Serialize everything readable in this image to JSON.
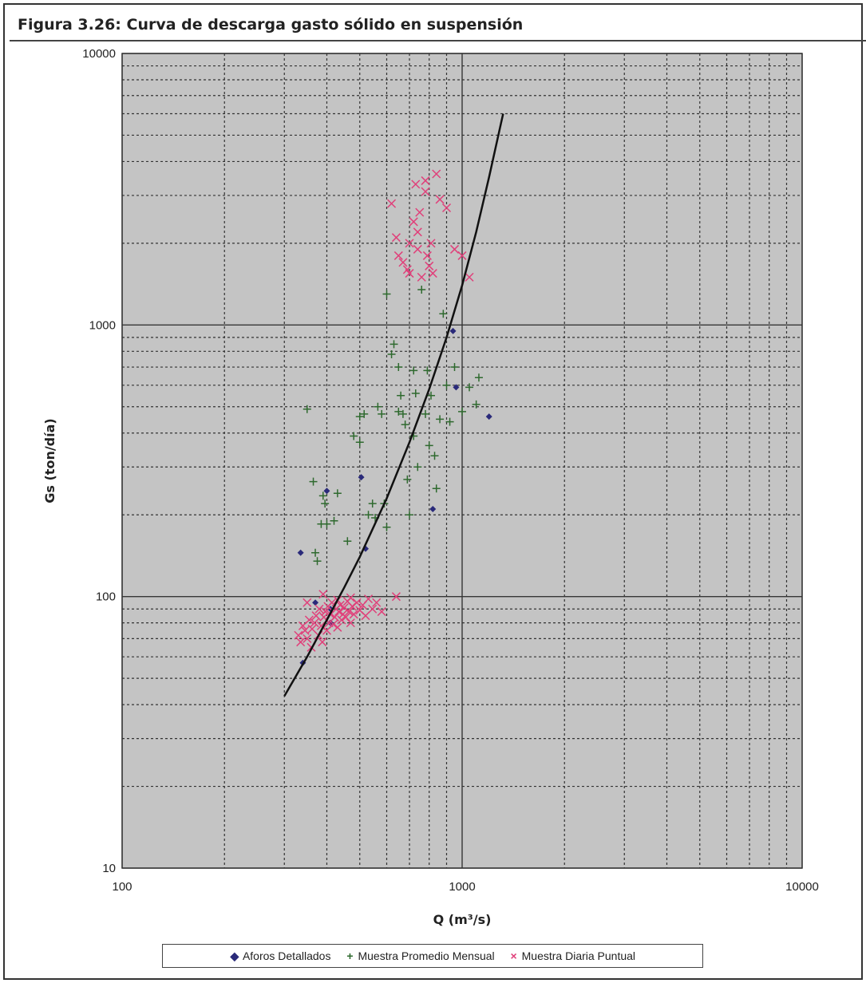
{
  "figure_title": "Figura 3.26:  Curva de descarga gasto sólido en suspensión",
  "chart_data": {
    "type": "scatter",
    "xlabel": "Q (m³/s)",
    "ylabel": "Gs (ton/día)",
    "x_scale": "log",
    "y_scale": "log",
    "xlim": [
      100,
      10000
    ],
    "ylim": [
      10,
      10000
    ],
    "x_ticks": [
      "100",
      "1000",
      "10000"
    ],
    "y_ticks": [
      "10",
      "100",
      "1000",
      "10000"
    ],
    "grid": true,
    "legend_position": "bottom",
    "colors": {
      "plot_bg": "#c4c4c4",
      "aforos": "#2a2a7a",
      "mensual": "#2f6a2f",
      "diaria": "#e0407a",
      "curve": "#111111"
    },
    "series": [
      {
        "name": "Aforos Detallados",
        "marker": "diamond",
        "points": [
          [
            335,
            145
          ],
          [
            340,
            57
          ],
          [
            400,
            245
          ],
          [
            410,
            80
          ],
          [
            505,
            275
          ],
          [
            520,
            150
          ],
          [
            940,
            950
          ],
          [
            960,
            590
          ],
          [
            1200,
            460
          ],
          [
            820,
            210
          ],
          [
            410,
            90
          ],
          [
            370,
            95
          ]
        ]
      },
      {
        "name": "Muestra Promedio Mensual",
        "marker": "plus",
        "points": [
          [
            350,
            490
          ],
          [
            365,
            265
          ],
          [
            370,
            145
          ],
          [
            375,
            135
          ],
          [
            385,
            185
          ],
          [
            390,
            235
          ],
          [
            395,
            220
          ],
          [
            400,
            185
          ],
          [
            420,
            190
          ],
          [
            430,
            240
          ],
          [
            460,
            160
          ],
          [
            480,
            390
          ],
          [
            500,
            370
          ],
          [
            500,
            460
          ],
          [
            515,
            470
          ],
          [
            530,
            200
          ],
          [
            545,
            220
          ],
          [
            555,
            195
          ],
          [
            565,
            500
          ],
          [
            580,
            470
          ],
          [
            590,
            220
          ],
          [
            600,
            180
          ],
          [
            620,
            780
          ],
          [
            630,
            850
          ],
          [
            650,
            700
          ],
          [
            650,
            480
          ],
          [
            660,
            550
          ],
          [
            670,
            470
          ],
          [
            680,
            430
          ],
          [
            690,
            270
          ],
          [
            700,
            200
          ],
          [
            720,
            390
          ],
          [
            720,
            680
          ],
          [
            730,
            560
          ],
          [
            740,
            300
          ],
          [
            760,
            1350
          ],
          [
            780,
            470
          ],
          [
            790,
            680
          ],
          [
            800,
            360
          ],
          [
            810,
            550
          ],
          [
            830,
            330
          ],
          [
            840,
            250
          ],
          [
            860,
            450
          ],
          [
            880,
            1100
          ],
          [
            900,
            600
          ],
          [
            920,
            440
          ],
          [
            950,
            700
          ],
          [
            1000,
            480
          ],
          [
            1050,
            590
          ],
          [
            1100,
            510
          ],
          [
            1120,
            640
          ],
          [
            600,
            1300
          ]
        ]
      },
      {
        "name": "Muestra Diaria Puntual",
        "marker": "cross",
        "points": [
          [
            330,
            72
          ],
          [
            335,
            68
          ],
          [
            340,
            78
          ],
          [
            345,
            75
          ],
          [
            350,
            70
          ],
          [
            355,
            82
          ],
          [
            360,
            65
          ],
          [
            362,
            76
          ],
          [
            368,
            80
          ],
          [
            372,
            85
          ],
          [
            378,
            72
          ],
          [
            380,
            90
          ],
          [
            385,
            78
          ],
          [
            388,
            68
          ],
          [
            392,
            84
          ],
          [
            396,
            88
          ],
          [
            400,
            75
          ],
          [
            403,
            92
          ],
          [
            406,
            80
          ],
          [
            410,
            86
          ],
          [
            414,
            95
          ],
          [
            418,
            79
          ],
          [
            422,
            84
          ],
          [
            426,
            90
          ],
          [
            430,
            77
          ],
          [
            434,
            88
          ],
          [
            438,
            93
          ],
          [
            442,
            82
          ],
          [
            446,
            86
          ],
          [
            450,
            91
          ],
          [
            455,
            84
          ],
          [
            460,
            96
          ],
          [
            465,
            88
          ],
          [
            470,
            80
          ],
          [
            475,
            92
          ],
          [
            480,
            86
          ],
          [
            490,
            95
          ],
          [
            500,
            89
          ],
          [
            510,
            93
          ],
          [
            520,
            85
          ],
          [
            530,
            98
          ],
          [
            545,
            90
          ],
          [
            560,
            95
          ],
          [
            580,
            88
          ],
          [
            640,
            100
          ],
          [
            350,
            95
          ],
          [
            390,
            102
          ],
          [
            430,
            97
          ],
          [
            470,
            99
          ],
          [
            620,
            2800
          ],
          [
            640,
            2100
          ],
          [
            650,
            1800
          ],
          [
            670,
            1700
          ],
          [
            690,
            1600
          ],
          [
            700,
            2000
          ],
          [
            720,
            2400
          ],
          [
            730,
            3300
          ],
          [
            740,
            1900
          ],
          [
            750,
            2600
          ],
          [
            760,
            1500
          ],
          [
            780,
            3100
          ],
          [
            790,
            1800
          ],
          [
            800,
            1650
          ],
          [
            810,
            2000
          ],
          [
            820,
            1550
          ],
          [
            840,
            3600
          ],
          [
            860,
            2900
          ],
          [
            900,
            2700
          ],
          [
            950,
            1900
          ],
          [
            1000,
            1800
          ],
          [
            1050,
            1500
          ],
          [
            780,
            3400
          ],
          [
            700,
            1550
          ],
          [
            740,
            2200
          ]
        ]
      }
    ],
    "curve": {
      "name": "",
      "points": [
        [
          300,
          43
        ],
        [
          350,
          60
        ],
        [
          400,
          82
        ],
        [
          450,
          108
        ],
        [
          500,
          140
        ],
        [
          600,
          230
        ],
        [
          700,
          370
        ],
        [
          800,
          580
        ],
        [
          900,
          900
        ],
        [
          1000,
          1400
        ],
        [
          1100,
          2200
        ],
        [
          1200,
          3500
        ],
        [
          1300,
          5500
        ],
        [
          1320,
          6000
        ]
      ]
    }
  }
}
